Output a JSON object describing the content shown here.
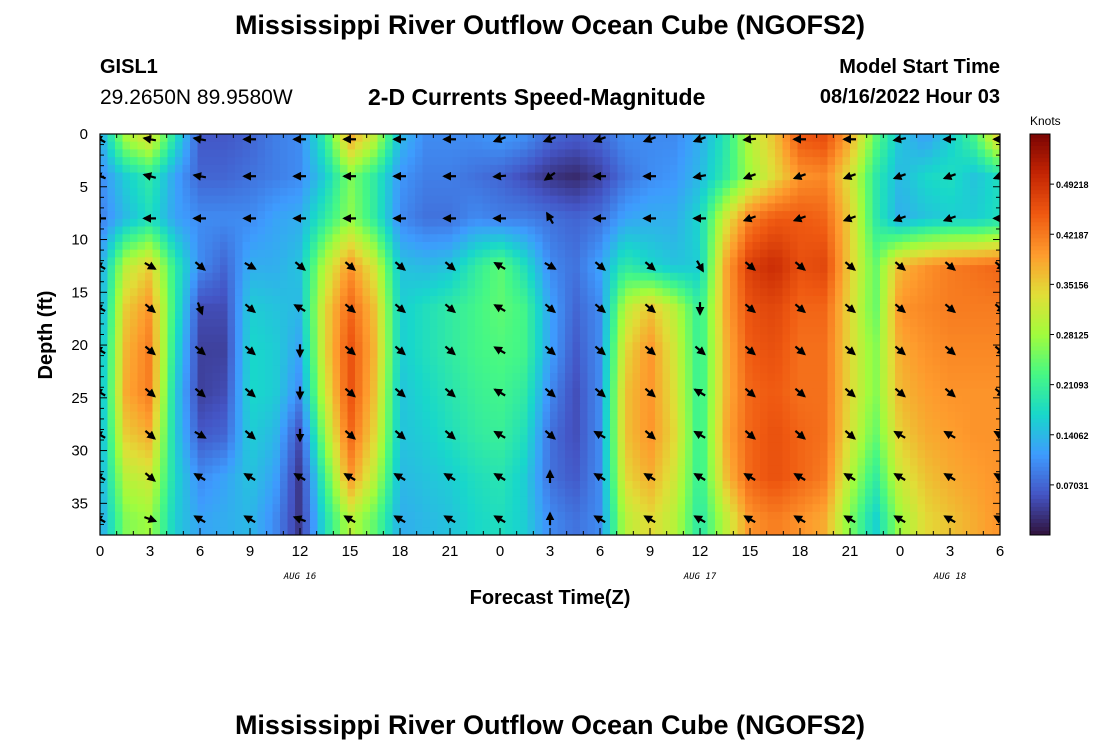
{
  "header": {
    "title": "Mississippi River Outflow Ocean Cube (NGOFS2)",
    "station_id": "GISL1",
    "coordinates": "29.2650N  89.9580W",
    "subtitle": "2-D Currents Speed-Magnitude",
    "model_start_label": "Model Start Time",
    "model_start_value": "08/16/2022 Hour 03"
  },
  "footer": {
    "title": "Mississippi River Outflow Ocean Cube (NGOFS2)"
  },
  "chart_data": {
    "type": "heatmap",
    "xlabel": "Forecast Time(Z)",
    "ylabel": "Depth (ft)",
    "colorbar_label": "Knots",
    "colorbar_ticks": [
      "0.07031",
      "0.14062",
      "0.21093",
      "0.28125",
      "0.35156",
      "0.42187",
      "0.49218"
    ],
    "colorbar_range": [
      0.0,
      0.5625
    ],
    "colormap": [
      "#30123b",
      "#4454c4",
      "#3e9bfe",
      "#18d7cb",
      "#46f884",
      "#a2fc3c",
      "#e1dd37",
      "#fe9b2d",
      "#ef5911",
      "#c42503",
      "#7a0403"
    ],
    "x_ticks": [
      "0",
      "3",
      "6",
      "9",
      "12",
      "15",
      "18",
      "21",
      "0",
      "3",
      "6",
      "9",
      "12",
      "15",
      "18",
      "21",
      "0",
      "3",
      "6"
    ],
    "date_labels": [
      {
        "label": "AUG 16",
        "tick_index": 4
      },
      {
        "label": "AUG 17",
        "tick_index": 12
      },
      {
        "label": "AUG 18",
        "tick_index": 17
      }
    ],
    "y_ticks": [
      0,
      5,
      10,
      15,
      20,
      25,
      30,
      35
    ],
    "y_range": [
      0,
      38
    ],
    "time_range_hours": [
      0,
      54
    ],
    "depths_ft": [
      0.5,
      4,
      8,
      12.5,
      16.5,
      20.5,
      24.5,
      28.5,
      32.5,
      36.5
    ],
    "times_hours": [
      0,
      1.5,
      3,
      4.5,
      6,
      7.5,
      9,
      10.5,
      12,
      13.5,
      15,
      16.5,
      18,
      19.5,
      21,
      22.5,
      24,
      25.5,
      27,
      28.5,
      30,
      31.5,
      33,
      34.5,
      36,
      37.5,
      39,
      40.5,
      42,
      43.5,
      45,
      46.5,
      48,
      49.5,
      51,
      52.5,
      54
    ],
    "speed_knots": [
      [
        0.12,
        0.28,
        0.33,
        0.18,
        0.06,
        0.06,
        0.07,
        0.09,
        0.1,
        0.2,
        0.38,
        0.3,
        0.14,
        0.1,
        0.1,
        0.1,
        0.11,
        0.1,
        0.07,
        0.06,
        0.07,
        0.1,
        0.1,
        0.1,
        0.13,
        0.19,
        0.3,
        0.36,
        0.45,
        0.46,
        0.38,
        0.24,
        0.15,
        0.12,
        0.16,
        0.22,
        0.35
      ],
      [
        0.1,
        0.16,
        0.2,
        0.12,
        0.07,
        0.07,
        0.08,
        0.09,
        0.1,
        0.16,
        0.26,
        0.2,
        0.11,
        0.09,
        0.09,
        0.08,
        0.07,
        0.05,
        0.03,
        0.02,
        0.04,
        0.08,
        0.1,
        0.11,
        0.14,
        0.2,
        0.28,
        0.34,
        0.4,
        0.41,
        0.33,
        0.2,
        0.14,
        0.17,
        0.18,
        0.15,
        0.18
      ],
      [
        0.09,
        0.14,
        0.18,
        0.12,
        0.1,
        0.1,
        0.1,
        0.12,
        0.13,
        0.2,
        0.27,
        0.2,
        0.1,
        0.08,
        0.08,
        0.1,
        0.09,
        0.09,
        0.08,
        0.07,
        0.08,
        0.12,
        0.13,
        0.13,
        0.17,
        0.32,
        0.42,
        0.45,
        0.45,
        0.44,
        0.35,
        0.2,
        0.13,
        0.15,
        0.16,
        0.16,
        0.18
      ],
      [
        0.12,
        0.3,
        0.35,
        0.2,
        0.1,
        0.07,
        0.13,
        0.13,
        0.15,
        0.3,
        0.4,
        0.32,
        0.15,
        0.14,
        0.15,
        0.2,
        0.24,
        0.18,
        0.1,
        0.08,
        0.12,
        0.2,
        0.17,
        0.15,
        0.16,
        0.38,
        0.48,
        0.5,
        0.46,
        0.47,
        0.35,
        0.24,
        0.37,
        0.4,
        0.42,
        0.43,
        0.44
      ],
      [
        0.12,
        0.35,
        0.4,
        0.2,
        0.05,
        0.05,
        0.16,
        0.15,
        0.14,
        0.34,
        0.44,
        0.36,
        0.16,
        0.18,
        0.2,
        0.22,
        0.24,
        0.22,
        0.12,
        0.07,
        0.1,
        0.3,
        0.36,
        0.3,
        0.2,
        0.38,
        0.46,
        0.47,
        0.44,
        0.44,
        0.34,
        0.24,
        0.4,
        0.41,
        0.42,
        0.42,
        0.42
      ],
      [
        0.13,
        0.37,
        0.42,
        0.18,
        0.04,
        0.04,
        0.17,
        0.16,
        0.12,
        0.34,
        0.46,
        0.37,
        0.16,
        0.18,
        0.2,
        0.22,
        0.23,
        0.22,
        0.12,
        0.06,
        0.1,
        0.34,
        0.4,
        0.32,
        0.2,
        0.37,
        0.45,
        0.46,
        0.43,
        0.43,
        0.34,
        0.26,
        0.38,
        0.4,
        0.41,
        0.41,
        0.41
      ],
      [
        0.13,
        0.38,
        0.42,
        0.16,
        0.04,
        0.05,
        0.17,
        0.16,
        0.1,
        0.32,
        0.46,
        0.36,
        0.15,
        0.17,
        0.19,
        0.21,
        0.22,
        0.2,
        0.1,
        0.05,
        0.1,
        0.36,
        0.4,
        0.33,
        0.2,
        0.37,
        0.44,
        0.45,
        0.43,
        0.43,
        0.34,
        0.26,
        0.37,
        0.39,
        0.4,
        0.4,
        0.4
      ],
      [
        0.13,
        0.35,
        0.38,
        0.16,
        0.06,
        0.07,
        0.16,
        0.14,
        0.05,
        0.28,
        0.44,
        0.34,
        0.15,
        0.16,
        0.18,
        0.2,
        0.21,
        0.18,
        0.08,
        0.05,
        0.1,
        0.36,
        0.4,
        0.34,
        0.2,
        0.38,
        0.44,
        0.46,
        0.44,
        0.43,
        0.33,
        0.24,
        0.35,
        0.38,
        0.39,
        0.4,
        0.4
      ],
      [
        0.13,
        0.3,
        0.32,
        0.17,
        0.1,
        0.12,
        0.15,
        0.12,
        0.03,
        0.22,
        0.4,
        0.3,
        0.14,
        0.15,
        0.16,
        0.18,
        0.19,
        0.16,
        0.08,
        0.06,
        0.1,
        0.34,
        0.38,
        0.32,
        0.2,
        0.36,
        0.44,
        0.46,
        0.44,
        0.42,
        0.3,
        0.2,
        0.32,
        0.36,
        0.38,
        0.39,
        0.4
      ],
      [
        0.12,
        0.26,
        0.28,
        0.16,
        0.12,
        0.13,
        0.14,
        0.1,
        0.03,
        0.18,
        0.3,
        0.24,
        0.13,
        0.14,
        0.15,
        0.17,
        0.18,
        0.16,
        0.1,
        0.08,
        0.1,
        0.3,
        0.34,
        0.3,
        0.19,
        0.3,
        0.4,
        0.42,
        0.4,
        0.38,
        0.26,
        0.16,
        0.28,
        0.34,
        0.36,
        0.38,
        0.4
      ]
    ],
    "vector_times_hours": [
      0,
      3,
      6,
      9,
      12,
      15,
      18,
      21,
      24,
      27,
      30,
      33,
      36,
      39,
      42,
      45,
      48,
      51,
      54
    ],
    "vector_directions_deg": [
      [
        300,
        280,
        280,
        270,
        270,
        270,
        270,
        270,
        250,
        250,
        250,
        250,
        250,
        265,
        270,
        270,
        260,
        270,
        270
      ],
      [
        290,
        285,
        280,
        270,
        270,
        270,
        270,
        270,
        265,
        235,
        270,
        270,
        260,
        250,
        250,
        250,
        250,
        250,
        250
      ],
      [
        270,
        270,
        270,
        270,
        270,
        270,
        270,
        270,
        270,
        330,
        270,
        270,
        270,
        250,
        250,
        250,
        250,
        250,
        270
      ],
      [
        300,
        120,
        130,
        120,
        130,
        130,
        130,
        130,
        300,
        120,
        130,
        130,
        150,
        130,
        130,
        130,
        130,
        130,
        130
      ],
      [
        300,
        130,
        160,
        130,
        300,
        130,
        130,
        130,
        300,
        130,
        130,
        130,
        180,
        130,
        130,
        130,
        130,
        130,
        130
      ],
      [
        300,
        130,
        130,
        130,
        180,
        130,
        130,
        130,
        300,
        130,
        130,
        130,
        130,
        130,
        130,
        130,
        130,
        130,
        130
      ],
      [
        300,
        130,
        130,
        130,
        180,
        130,
        130,
        130,
        300,
        130,
        130,
        130,
        300,
        130,
        130,
        130,
        130,
        130,
        130
      ],
      [
        300,
        130,
        120,
        130,
        180,
        130,
        130,
        130,
        300,
        130,
        300,
        130,
        300,
        130,
        130,
        130,
        300,
        300,
        300
      ],
      [
        300,
        130,
        300,
        300,
        300,
        300,
        300,
        300,
        300,
        0,
        300,
        300,
        300,
        300,
        300,
        300,
        300,
        300,
        300
      ],
      [
        300,
        110,
        300,
        300,
        290,
        300,
        300,
        300,
        300,
        0,
        300,
        300,
        300,
        300,
        300,
        300,
        300,
        300,
        300
      ]
    ]
  }
}
